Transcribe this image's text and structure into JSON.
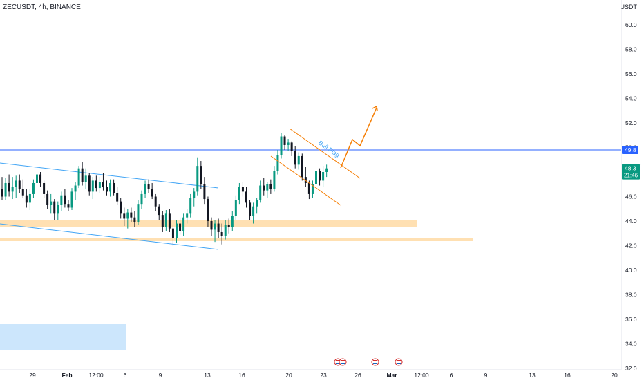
{
  "title": "ZECUSDT, 4h, BINANCE",
  "currency": "USDT",
  "colors": {
    "up": "#089981",
    "down": "#131722",
    "h_line": "#2962ff",
    "channel": "#42a5f5",
    "flag": "#f57c00",
    "zone": "#ffe0b2",
    "box": "#bbdefb",
    "price_tag": "#089981",
    "level_tag": "#2962ff"
  },
  "chart_data": {
    "type": "candlestick",
    "title": "ZECUSDT, 4h, BINANCE",
    "ylim": [
      32,
      63
    ],
    "y_ticks": [
      "32.0",
      "34.0",
      "36.0",
      "38.0",
      "40.0",
      "42.0",
      "44.0",
      "46.0",
      "48.0",
      "50.0",
      "52.0",
      "54.0",
      "56.0",
      "58.0",
      "60.0"
    ],
    "x_ticks": [
      "29",
      "Feb",
      "12:00",
      "6",
      "9",
      "13",
      "16",
      "20",
      "23",
      "26",
      "Mar",
      "12:00",
      "6",
      "9",
      "13",
      "16",
      "20"
    ],
    "horizontal_level": {
      "value": 49.8,
      "label": "49.8"
    },
    "last_price": {
      "value": 48.3,
      "label": "48.3",
      "countdown": "21:46"
    },
    "annotation": "Bull Flag",
    "candles": [
      [
        46.6,
        47.6,
        45.7,
        46.0
      ],
      [
        46.0,
        47.5,
        45.7,
        47.1
      ],
      [
        47.1,
        47.8,
        46.0,
        46.4
      ],
      [
        46.4,
        47.6,
        45.8,
        46.8
      ],
      [
        46.8,
        47.7,
        45.9,
        47.3
      ],
      [
        47.3,
        47.8,
        46.3,
        46.6
      ],
      [
        46.6,
        47.4,
        45.9,
        46.1
      ],
      [
        46.1,
        46.6,
        45.1,
        45.5
      ],
      [
        45.5,
        46.6,
        44.9,
        46.2
      ],
      [
        46.2,
        47.4,
        45.9,
        47.1
      ],
      [
        47.1,
        48.2,
        46.8,
        47.8
      ],
      [
        47.8,
        48.0,
        46.8,
        47.1
      ],
      [
        47.1,
        47.3,
        45.9,
        46.2
      ],
      [
        46.2,
        46.5,
        45.0,
        45.3
      ],
      [
        45.3,
        46.2,
        44.6,
        45.6
      ],
      [
        45.6,
        45.8,
        44.1,
        44.6
      ],
      [
        44.6,
        45.6,
        44.1,
        45.3
      ],
      [
        45.3,
        46.4,
        44.8,
        46.1
      ],
      [
        46.1,
        46.6,
        45.1,
        45.4
      ],
      [
        45.4,
        45.7,
        44.8,
        45.1
      ],
      [
        45.1,
        46.7,
        44.9,
        46.4
      ],
      [
        46.4,
        47.2,
        45.7,
        46.9
      ],
      [
        46.9,
        48.5,
        46.7,
        48.3
      ],
      [
        48.3,
        48.8,
        46.9,
        47.2
      ],
      [
        47.2,
        48.3,
        46.6,
        47.7
      ],
      [
        47.7,
        47.9,
        46.1,
        46.4
      ],
      [
        46.4,
        47.6,
        45.8,
        47.3
      ],
      [
        47.3,
        47.7,
        46.4,
        46.7
      ],
      [
        46.7,
        47.6,
        46.3,
        47.2
      ],
      [
        47.2,
        47.9,
        46.5,
        46.8
      ],
      [
        46.8,
        47.3,
        46.1,
        46.4
      ],
      [
        46.4,
        47.4,
        46.0,
        47.1
      ],
      [
        47.1,
        47.4,
        46.1,
        46.3
      ],
      [
        46.3,
        46.8,
        45.3,
        45.6
      ],
      [
        45.6,
        45.9,
        44.2,
        44.6
      ],
      [
        44.6,
        45.1,
        43.6,
        44.2
      ],
      [
        44.2,
        45.0,
        43.4,
        44.7
      ],
      [
        44.7,
        45.1,
        43.9,
        44.3
      ],
      [
        44.3,
        44.8,
        43.5,
        43.9
      ],
      [
        43.9,
        45.7,
        43.7,
        45.4
      ],
      [
        45.4,
        46.5,
        45.0,
        46.2
      ],
      [
        46.2,
        47.3,
        45.9,
        47.0
      ],
      [
        47.0,
        47.4,
        46.3,
        46.6
      ],
      [
        46.6,
        47.1,
        45.8,
        46.0
      ],
      [
        46.0,
        46.2,
        44.8,
        45.2
      ],
      [
        45.2,
        45.4,
        44.1,
        44.5
      ],
      [
        44.5,
        44.8,
        43.1,
        43.5
      ],
      [
        43.5,
        44.9,
        43.2,
        44.6
      ],
      [
        44.6,
        45.0,
        43.1,
        43.4
      ],
      [
        43.4,
        43.7,
        42.0,
        42.6
      ],
      [
        42.6,
        44.1,
        42.2,
        43.8
      ],
      [
        43.8,
        44.3,
        42.9,
        43.2
      ],
      [
        43.2,
        44.6,
        42.8,
        44.3
      ],
      [
        44.3,
        45.0,
        43.8,
        44.6
      ],
      [
        44.6,
        46.2,
        44.3,
        45.9
      ],
      [
        45.9,
        46.7,
        45.2,
        46.4
      ],
      [
        46.4,
        49.2,
        46.1,
        48.5
      ],
      [
        48.5,
        48.9,
        46.6,
        47.0
      ],
      [
        47.0,
        47.6,
        45.4,
        45.8
      ],
      [
        45.8,
        46.0,
        43.5,
        44.0
      ],
      [
        44.0,
        44.3,
        42.8,
        43.3
      ],
      [
        43.3,
        44.1,
        42.3,
        43.8
      ],
      [
        43.8,
        44.2,
        42.6,
        43.1
      ],
      [
        43.1,
        43.8,
        42.1,
        42.8
      ],
      [
        42.8,
        44.1,
        42.5,
        43.7
      ],
      [
        43.7,
        44.2,
        43.0,
        43.5
      ],
      [
        43.5,
        44.8,
        43.2,
        44.4
      ],
      [
        44.4,
        46.1,
        44.1,
        45.7
      ],
      [
        45.7,
        47.1,
        45.4,
        46.8
      ],
      [
        46.8,
        47.2,
        46.0,
        46.4
      ],
      [
        46.4,
        46.8,
        45.1,
        45.5
      ],
      [
        45.5,
        45.7,
        44.1,
        44.4
      ],
      [
        44.4,
        45.5,
        43.8,
        45.2
      ],
      [
        45.2,
        45.9,
        44.6,
        45.7
      ],
      [
        45.7,
        47.3,
        45.5,
        46.9
      ],
      [
        46.9,
        47.5,
        46.1,
        46.5
      ],
      [
        46.5,
        47.2,
        45.9,
        47.0
      ],
      [
        47.0,
        47.4,
        46.2,
        46.6
      ],
      [
        46.6,
        48.5,
        46.4,
        48.1
      ],
      [
        48.1,
        49.8,
        47.8,
        49.4
      ],
      [
        49.4,
        51.2,
        49.1,
        50.9
      ],
      [
        50.9,
        51.0,
        49.8,
        50.2
      ],
      [
        50.2,
        50.7,
        49.7,
        50.4
      ],
      [
        50.4,
        50.5,
        49.3,
        49.7
      ],
      [
        49.7,
        50.1,
        48.3,
        48.6
      ],
      [
        48.6,
        49.6,
        48.2,
        49.3
      ],
      [
        49.3,
        49.5,
        47.3,
        47.6
      ],
      [
        47.6,
        48.4,
        46.8,
        47.1
      ],
      [
        47.1,
        47.3,
        45.8,
        46.2
      ],
      [
        46.2,
        47.3,
        45.9,
        47.0
      ],
      [
        47.0,
        48.4,
        46.8,
        48.1
      ],
      [
        48.1,
        48.3,
        46.9,
        47.3
      ],
      [
        47.3,
        48.5,
        46.8,
        48.0
      ],
      [
        48.0,
        48.6,
        47.6,
        48.3
      ]
    ]
  }
}
